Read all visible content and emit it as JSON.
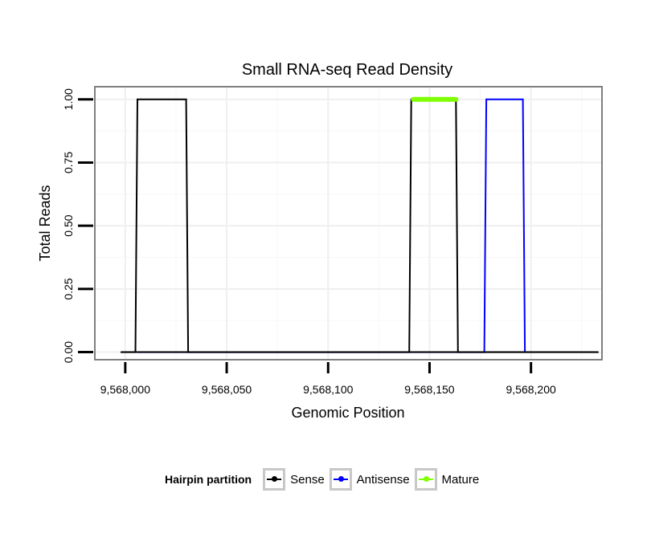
{
  "chart_data": {
    "type": "line",
    "title": "Small RNA-seq Read Density",
    "xlabel": "Genomic Position",
    "ylabel": "Total Reads",
    "xlim": [
      9567985,
      9568235
    ],
    "ylim": [
      -0.03,
      1.05
    ],
    "x_ticks": [
      9568000,
      9568050,
      9568100,
      9568150,
      9568200
    ],
    "x_tick_labels": [
      "9,568,000",
      "9,568,050",
      "9,568,100",
      "9,568,150",
      "9,568,200"
    ],
    "y_ticks": [
      0,
      0.25,
      0.5,
      0.75,
      1.0
    ],
    "y_tick_labels": [
      "0.00",
      "0.25",
      "0.50",
      "0.75",
      "1.00"
    ],
    "grid": true,
    "series": [
      {
        "name": "Sense",
        "color": "#000000",
        "x": [
          9567998,
          9568005,
          9568006,
          9568030,
          9568031,
          9568140,
          9568141,
          9568163,
          9568164,
          9568233
        ],
        "y": [
          0,
          0,
          1,
          1,
          0,
          0,
          1,
          1,
          0,
          0
        ]
      },
      {
        "name": "Antisense",
        "color": "#0000ff",
        "x": [
          9568006,
          9568031,
          9568141,
          9568163,
          9568177,
          9568178,
          9568196,
          9568197
        ],
        "y": [
          0,
          0,
          0,
          0,
          0,
          1,
          1,
          0
        ]
      },
      {
        "name": "Mature",
        "color": "#7fff00",
        "x": [
          9568142,
          9568163
        ],
        "y": [
          1,
          1
        ]
      }
    ],
    "legend": {
      "title": "Hairpin partition",
      "position": "bottom",
      "entries": [
        "Sense",
        "Antisense",
        "Mature"
      ]
    }
  }
}
